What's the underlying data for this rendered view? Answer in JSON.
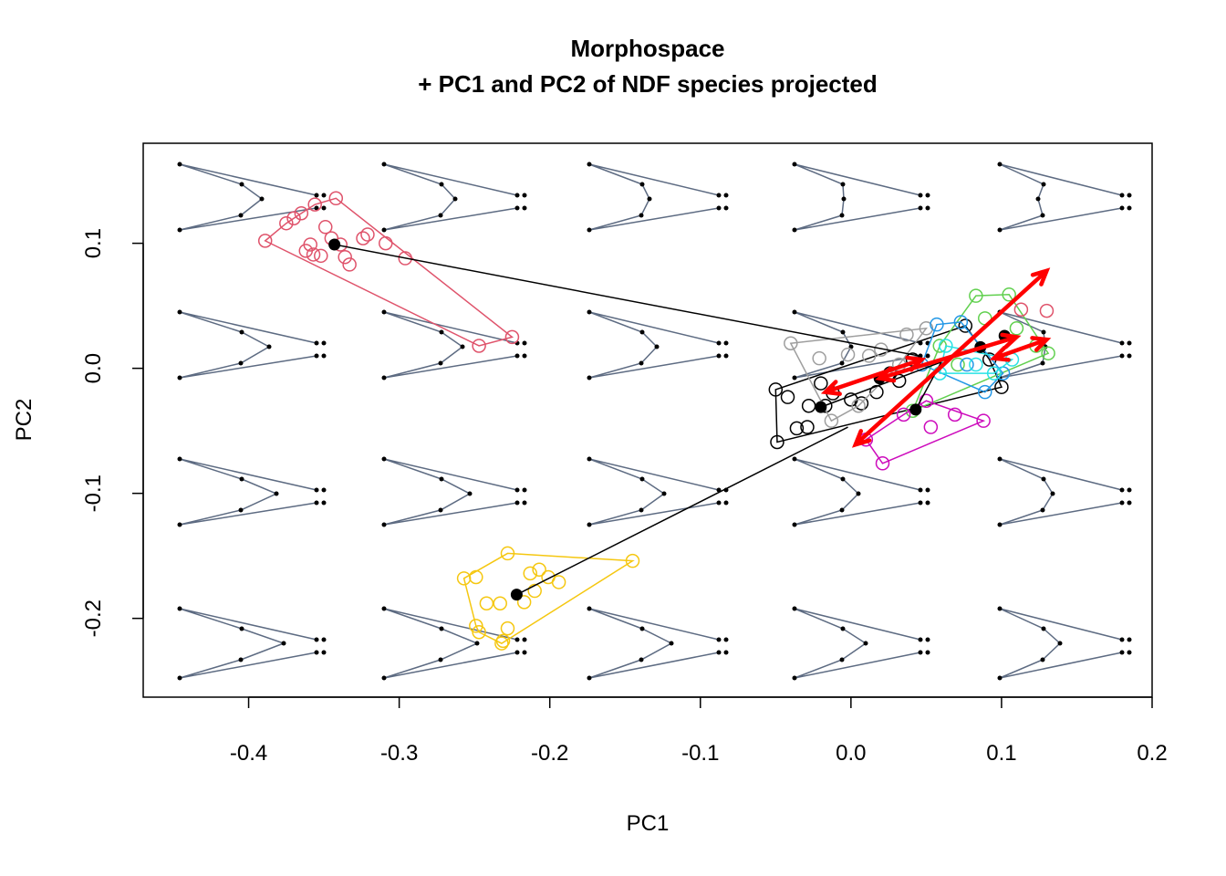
{
  "chart_data": {
    "type": "scatter",
    "title": "Morphospace",
    "subtitle": "+ PC1 and PC2 of NDF species projected",
    "x_label": "PC1",
    "y_label": "PC2",
    "xlim": [
      -0.47,
      0.2
    ],
    "ylim": [
      -0.263,
      0.18
    ],
    "xticks": [
      -0.4,
      -0.3,
      -0.2,
      -0.1,
      {
        "value": 0,
        "label": "0.0"
      },
      0.1,
      0.2
    ],
    "yticks": [
      -0.2,
      -0.1,
      {
        "value": 0,
        "label": "0.0"
      },
      0.1
    ],
    "series": [
      {
        "color": "#DF536B",
        "x": [
          -0.389,
          -0.375,
          -0.37,
          -0.365,
          -0.356,
          -0.342,
          -0.349,
          -0.359,
          -0.362,
          -0.357,
          -0.352,
          -0.345,
          -0.339,
          -0.336,
          -0.333,
          -0.324,
          -0.321,
          -0.309,
          -0.296,
          -0.247,
          -0.225
        ],
        "values": [
          0.102,
          0.116,
          0.12,
          0.124,
          0.131,
          0.136,
          0.113,
          0.099,
          0.094,
          0.091,
          0.09,
          0.104,
          0.099,
          0.089,
          0.083,
          0.104,
          0.107,
          0.1,
          0.088,
          0.018,
          0.025
        ]
      },
      {
        "color": "#F5C710",
        "x": [
          -0.257,
          -0.249,
          -0.228,
          -0.213,
          -0.207,
          -0.201,
          -0.194,
          -0.145,
          -0.242,
          -0.233,
          -0.217,
          -0.21,
          -0.249,
          -0.247,
          -0.228,
          -0.231,
          -0.232
        ],
        "values": [
          -0.168,
          -0.167,
          -0.148,
          -0.164,
          -0.161,
          -0.167,
          -0.171,
          -0.154,
          -0.188,
          -0.188,
          -0.187,
          -0.178,
          -0.206,
          -0.211,
          -0.208,
          -0.218,
          -0.22
        ]
      },
      {
        "color": "#000000",
        "x": [
          -0.05,
          -0.042,
          -0.049,
          -0.036,
          -0.029,
          -0.028,
          -0.017,
          -0.012,
          0.0,
          0.007,
          0.017,
          0.032,
          0.041,
          0.076,
          0.1,
          0.092,
          0.026,
          -0.02
        ],
        "values": [
          -0.017,
          -0.023,
          -0.059,
          -0.048,
          -0.047,
          -0.03,
          -0.03,
          -0.02,
          -0.025,
          -0.028,
          -0.019,
          -0.01,
          0.007,
          0.034,
          -0.015,
          0.007,
          -0.004,
          -0.012
        ]
      },
      {
        "color": "#9E9E9E",
        "x": [
          -0.04,
          -0.021,
          -0.002,
          0.012,
          0.02,
          0.037,
          0.05,
          0.005,
          -0.013,
          0.032
        ],
        "values": [
          0.02,
          0.008,
          0.011,
          0.01,
          0.015,
          0.027,
          0.032,
          -0.03,
          -0.042,
          0.003
        ]
      },
      {
        "color": "#61D04F",
        "x": [
          0.083,
          0.105,
          0.131,
          0.123,
          0.059,
          0.041,
          0.089,
          0.071,
          0.11
        ],
        "values": [
          0.058,
          0.059,
          0.012,
          0.018,
          0.018,
          -0.034,
          0.04,
          0.003,
          0.032
        ]
      },
      {
        "color": "#2297E6",
        "x": [
          0.057,
          0.073,
          0.089,
          0.101,
          0.047,
          0.077
        ],
        "values": [
          0.035,
          0.037,
          -0.019,
          -0.004,
          0.003,
          0.003
        ]
      },
      {
        "color": "#28E2E5",
        "x": [
          0.063,
          0.083,
          0.095,
          0.059,
          0.107
        ],
        "values": [
          0.018,
          0.003,
          -0.004,
          -0.004,
          0.007
        ]
      },
      {
        "color": "#CD0BBC",
        "x": [
          0.01,
          0.021,
          0.088,
          0.069,
          0.053,
          0.035,
          0.05
        ],
        "values": [
          -0.057,
          -0.076,
          -0.042,
          -0.037,
          -0.047,
          -0.037,
          -0.026
        ]
      },
      {
        "color": "#DF536B",
        "x": [
          0.113,
          0.13
        ],
        "values": [
          0.047,
          0.046
        ]
      }
    ],
    "means": {
      "color": "#000000",
      "x": [
        -0.343,
        -0.222,
        -0.02,
        0.019,
        0.043,
        0.086,
        0.102
      ],
      "values": [
        0.099,
        -0.181,
        -0.031,
        -0.008,
        -0.033,
        0.017,
        0.026
      ]
    },
    "links": [
      {
        "x": [
          -0.343,
          0.045
        ],
        "values": [
          0.099,
          0.01
        ]
      },
      {
        "x": [
          -0.222,
          -0.002
        ],
        "values": [
          -0.181,
          -0.047
        ]
      },
      {
        "x": [
          -0.02,
          0.06
        ],
        "values": [
          -0.031,
          0.005
        ]
      },
      {
        "x": [
          0.043,
          0.06
        ],
        "values": [
          -0.033,
          0.005
        ]
      }
    ],
    "arrows": {
      "color": "#FF0000",
      "items": [
        {
          "x": [
            0.003,
            0.13
          ],
          "values": [
            -0.061,
            0.078
          ]
        },
        {
          "x": [
            -0.017,
            0.047
          ],
          "values": [
            -0.019,
            0.007
          ]
        },
        {
          "x": [
            0.019,
            0.11
          ],
          "values": [
            -0.008,
            0.025
          ]
        },
        {
          "x": [
            0.095,
            0.13
          ],
          "values": [
            0.008,
            0.023
          ]
        }
      ]
    }
  }
}
